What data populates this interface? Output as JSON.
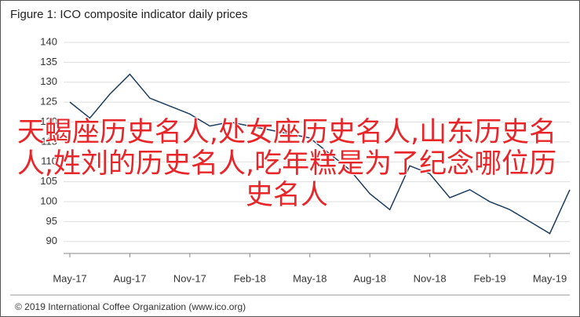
{
  "chart_data": {
    "type": "line",
    "title": "Figure 1: ICO composite indicator daily prices",
    "source": "© 2019 International Coffee Organization (www.ico.org)",
    "overlay_text": "天蝎座历史名人,处女座历史名人,山东历史名人,姓刘的历史名人,吃年糕是为了纪念哪位历史名人",
    "categories": [
      "May-17",
      null,
      null,
      "Aug-17",
      null,
      null,
      "Nov-17",
      null,
      null,
      "Feb-18",
      null,
      null,
      "May-18",
      null,
      null,
      "Aug-18",
      null,
      null,
      "Nov-18",
      null,
      null,
      "Feb-19",
      null,
      null,
      "May-19",
      null
    ],
    "series": [
      {
        "color": "#1c3d5e",
        "values": [
          125,
          121,
          127,
          132,
          126,
          124,
          122,
          119,
          120,
          119,
          118,
          117,
          116,
          112,
          108,
          102,
          98,
          109,
          107,
          101,
          103,
          100,
          98,
          95,
          92,
          103
        ]
      }
    ],
    "ylim": [
      87,
      140
    ],
    "yticks": [
      90,
      95,
      100,
      105,
      110,
      115,
      120,
      125,
      130,
      135,
      140
    ],
    "grid": true
  }
}
